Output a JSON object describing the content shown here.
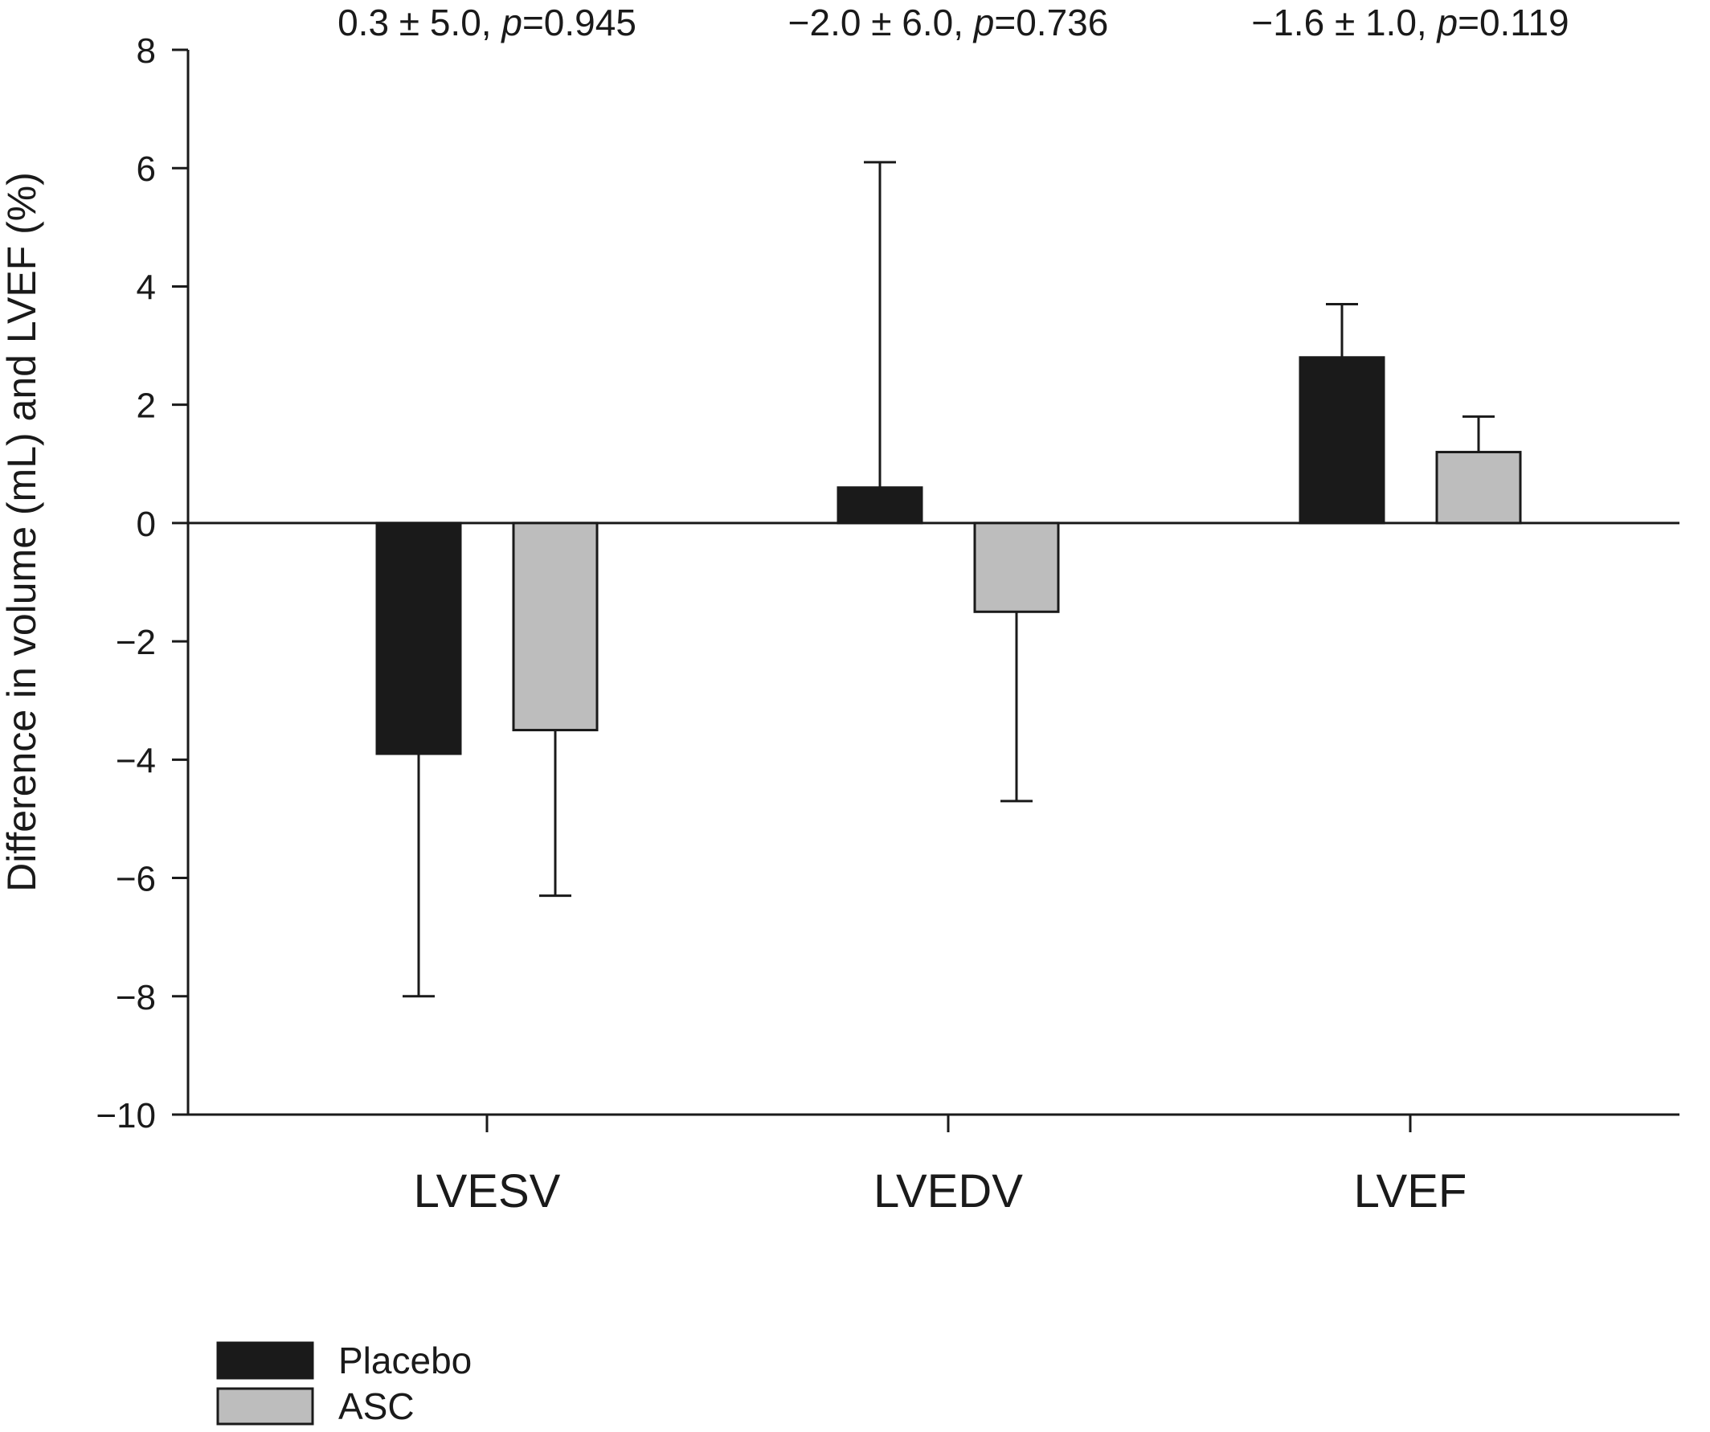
{
  "chart_data": {
    "type": "bar",
    "ylabel": "Difference in volume (mL) and LVEF (%)",
    "xlabel": "",
    "ylim": [
      -10,
      8
    ],
    "yticks": [
      -10,
      -8,
      -6,
      -4,
      -2,
      0,
      2,
      4,
      6,
      8
    ],
    "ytick_labels": [
      "−10",
      "−8",
      "−6",
      "−4",
      "−2",
      "0",
      "2",
      "4",
      "6",
      "8"
    ],
    "categories": [
      "LVESV",
      "LVEDV",
      "LVEF"
    ],
    "annotations": [
      {
        "prefix": "0.3 ± 5.0, ",
        "p_letter": "p",
        "suffix": "=0.945"
      },
      {
        "prefix": "−2.0 ± 6.0, ",
        "p_letter": "p",
        "suffix": "=0.736"
      },
      {
        "prefix": "−1.6 ± 1.0, ",
        "p_letter": "p",
        "suffix": "=0.119"
      }
    ],
    "series": [
      {
        "name": "Placebo",
        "color": "#1a1a1a",
        "values": [
          -3.9,
          0.6,
          2.8
        ],
        "errors": [
          4.1,
          5.5,
          0.9
        ]
      },
      {
        "name": "ASC",
        "color": "#bdbdbd",
        "values": [
          -3.5,
          -1.5,
          1.2
        ],
        "errors": [
          2.8,
          3.2,
          0.6
        ]
      }
    ],
    "grid": false,
    "legend_position": "bottom-left"
  }
}
